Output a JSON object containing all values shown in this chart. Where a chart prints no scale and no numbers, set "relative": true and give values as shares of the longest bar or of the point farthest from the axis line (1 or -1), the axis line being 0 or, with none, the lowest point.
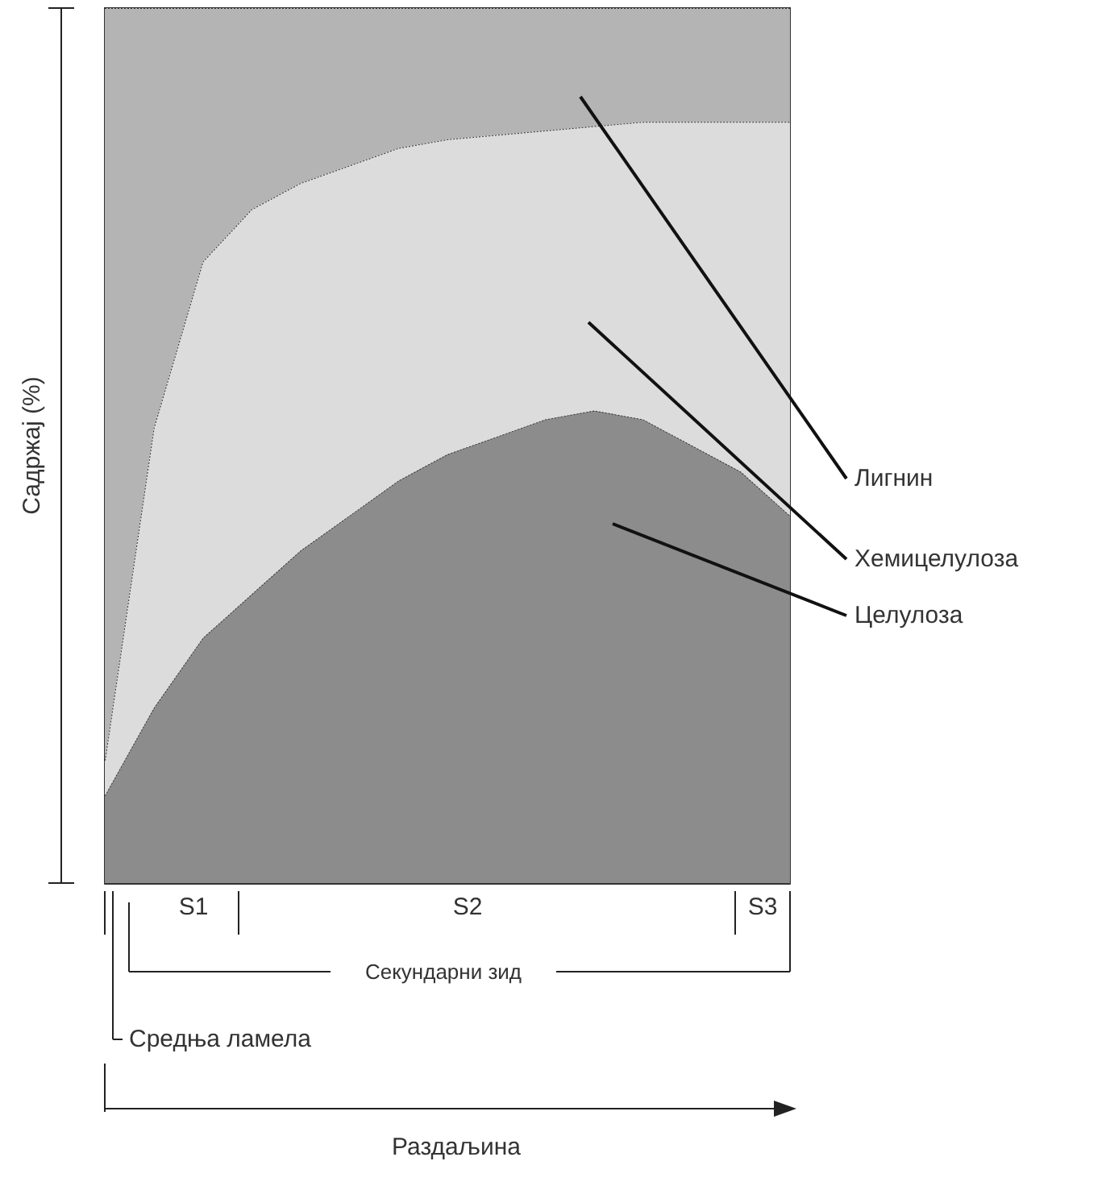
{
  "chart_data": {
    "type": "area",
    "relative": true,
    "stacked": true,
    "line_style": "dotted",
    "ylabel": "Садржај (%)",
    "categories": [
      null,
      null,
      null,
      null,
      null,
      null,
      null,
      null,
      null,
      null,
      null,
      null,
      null,
      null,
      null
    ],
    "series": [
      {
        "name": "Целулоза",
        "color": "#8c8c8c",
        "values": [
          0.1,
          0.2,
          0.28,
          0.33,
          0.38,
          0.42,
          0.46,
          0.49,
          0.51,
          0.53,
          0.54,
          0.53,
          0.5,
          0.47,
          0.42
        ]
      },
      {
        "name": "Хемицелулоза",
        "color": "#dcdcdc",
        "values": [
          0.04,
          0.32,
          0.43,
          0.44,
          0.42,
          0.4,
          0.38,
          0.36,
          0.345,
          0.33,
          0.325,
          0.34,
          0.37,
          0.4,
          0.45
        ]
      },
      {
        "name": "Лигнин",
        "color": "#b4b4b4",
        "values": [
          0.86,
          0.48,
          0.29,
          0.23,
          0.2,
          0.18,
          0.16,
          0.15,
          0.145,
          0.14,
          0.135,
          0.13,
          0.13,
          0.13,
          0.13
        ]
      }
    ],
    "annotations": [
      "S1",
      "S2",
      "S3",
      "Секундарни зид",
      "Средња ламела",
      "Раздаљина"
    ]
  }
}
